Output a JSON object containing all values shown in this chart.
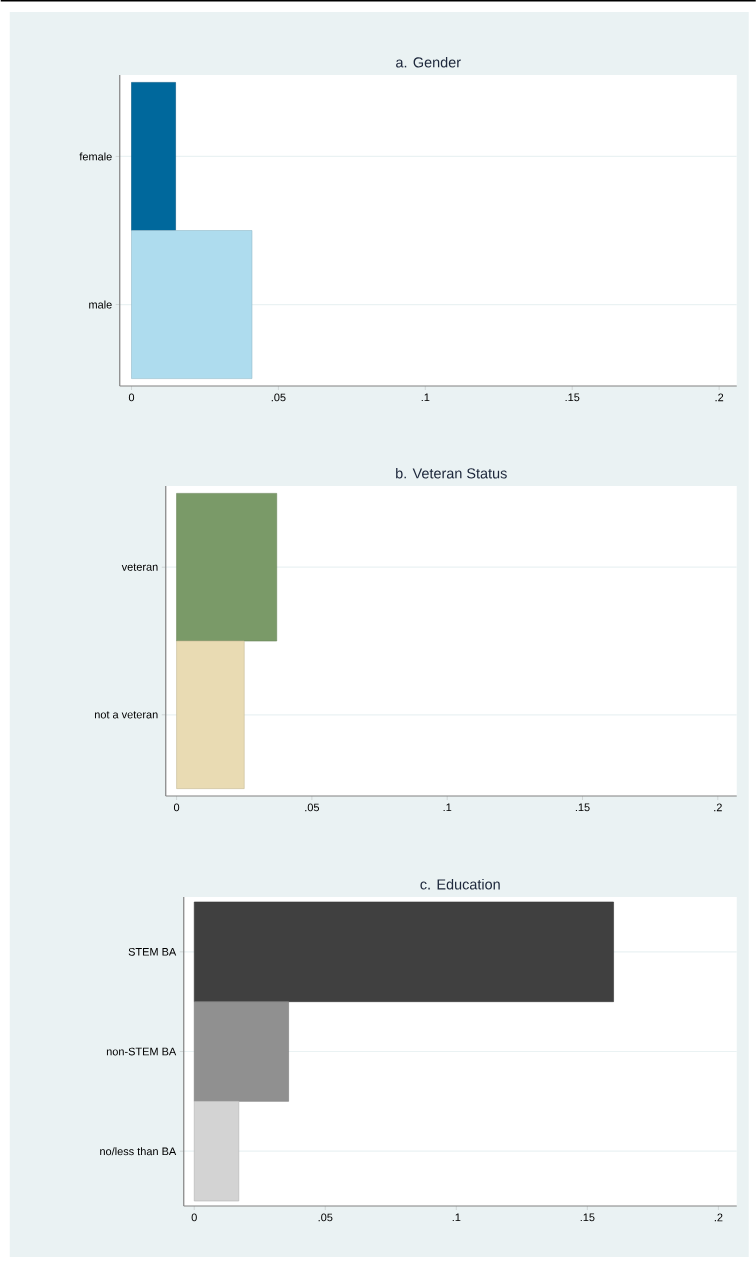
{
  "chart_data": [
    {
      "type": "bar",
      "orientation": "horizontal",
      "title": "a. Gender",
      "categories": [
        "female",
        "male"
      ],
      "values": [
        0.015,
        0.041
      ],
      "colors": [
        "#00689c",
        "#aedcee"
      ],
      "xlim": [
        -0.004,
        0.206
      ],
      "xticks": [
        0,
        {
          "value": 0.05,
          "label": ".05"
        },
        {
          "value": 0.1,
          "label": ".1"
        },
        {
          "value": 0.15,
          "label": ".15"
        },
        {
          "value": 0.2,
          "label": ".2"
        }
      ],
      "grid": "y"
    },
    {
      "type": "bar",
      "orientation": "horizontal",
      "title": "b. Veteran Status",
      "categories": [
        "veteran",
        "not a veteran"
      ],
      "values": [
        0.037,
        0.025
      ],
      "colors": [
        "#7a9a68",
        "#e9dbb3"
      ],
      "xlim": [
        -0.004,
        0.207
      ],
      "xticks": [
        0,
        {
          "value": 0.05,
          "label": ".05"
        },
        {
          "value": 0.1,
          "label": ".1"
        },
        {
          "value": 0.15,
          "label": ".15"
        },
        {
          "value": 0.2,
          "label": ".2"
        }
      ],
      "grid": "y"
    },
    {
      "type": "bar",
      "orientation": "horizontal",
      "title": "c. Education",
      "categories": [
        "STEM BA",
        "non-STEM BA",
        "no/less than BA"
      ],
      "values": [
        0.16,
        0.036,
        0.017
      ],
      "colors": [
        "#404040",
        "#909090",
        "#d3d3d3"
      ],
      "xlim": [
        -0.004,
        0.207
      ],
      "xticks": [
        0,
        {
          "value": 0.05,
          "label": ".05"
        },
        {
          "value": 0.1,
          "label": ".1"
        },
        {
          "value": 0.15,
          "label": ".15"
        },
        {
          "value": 0.2,
          "label": ".2"
        }
      ],
      "grid": "y"
    }
  ]
}
